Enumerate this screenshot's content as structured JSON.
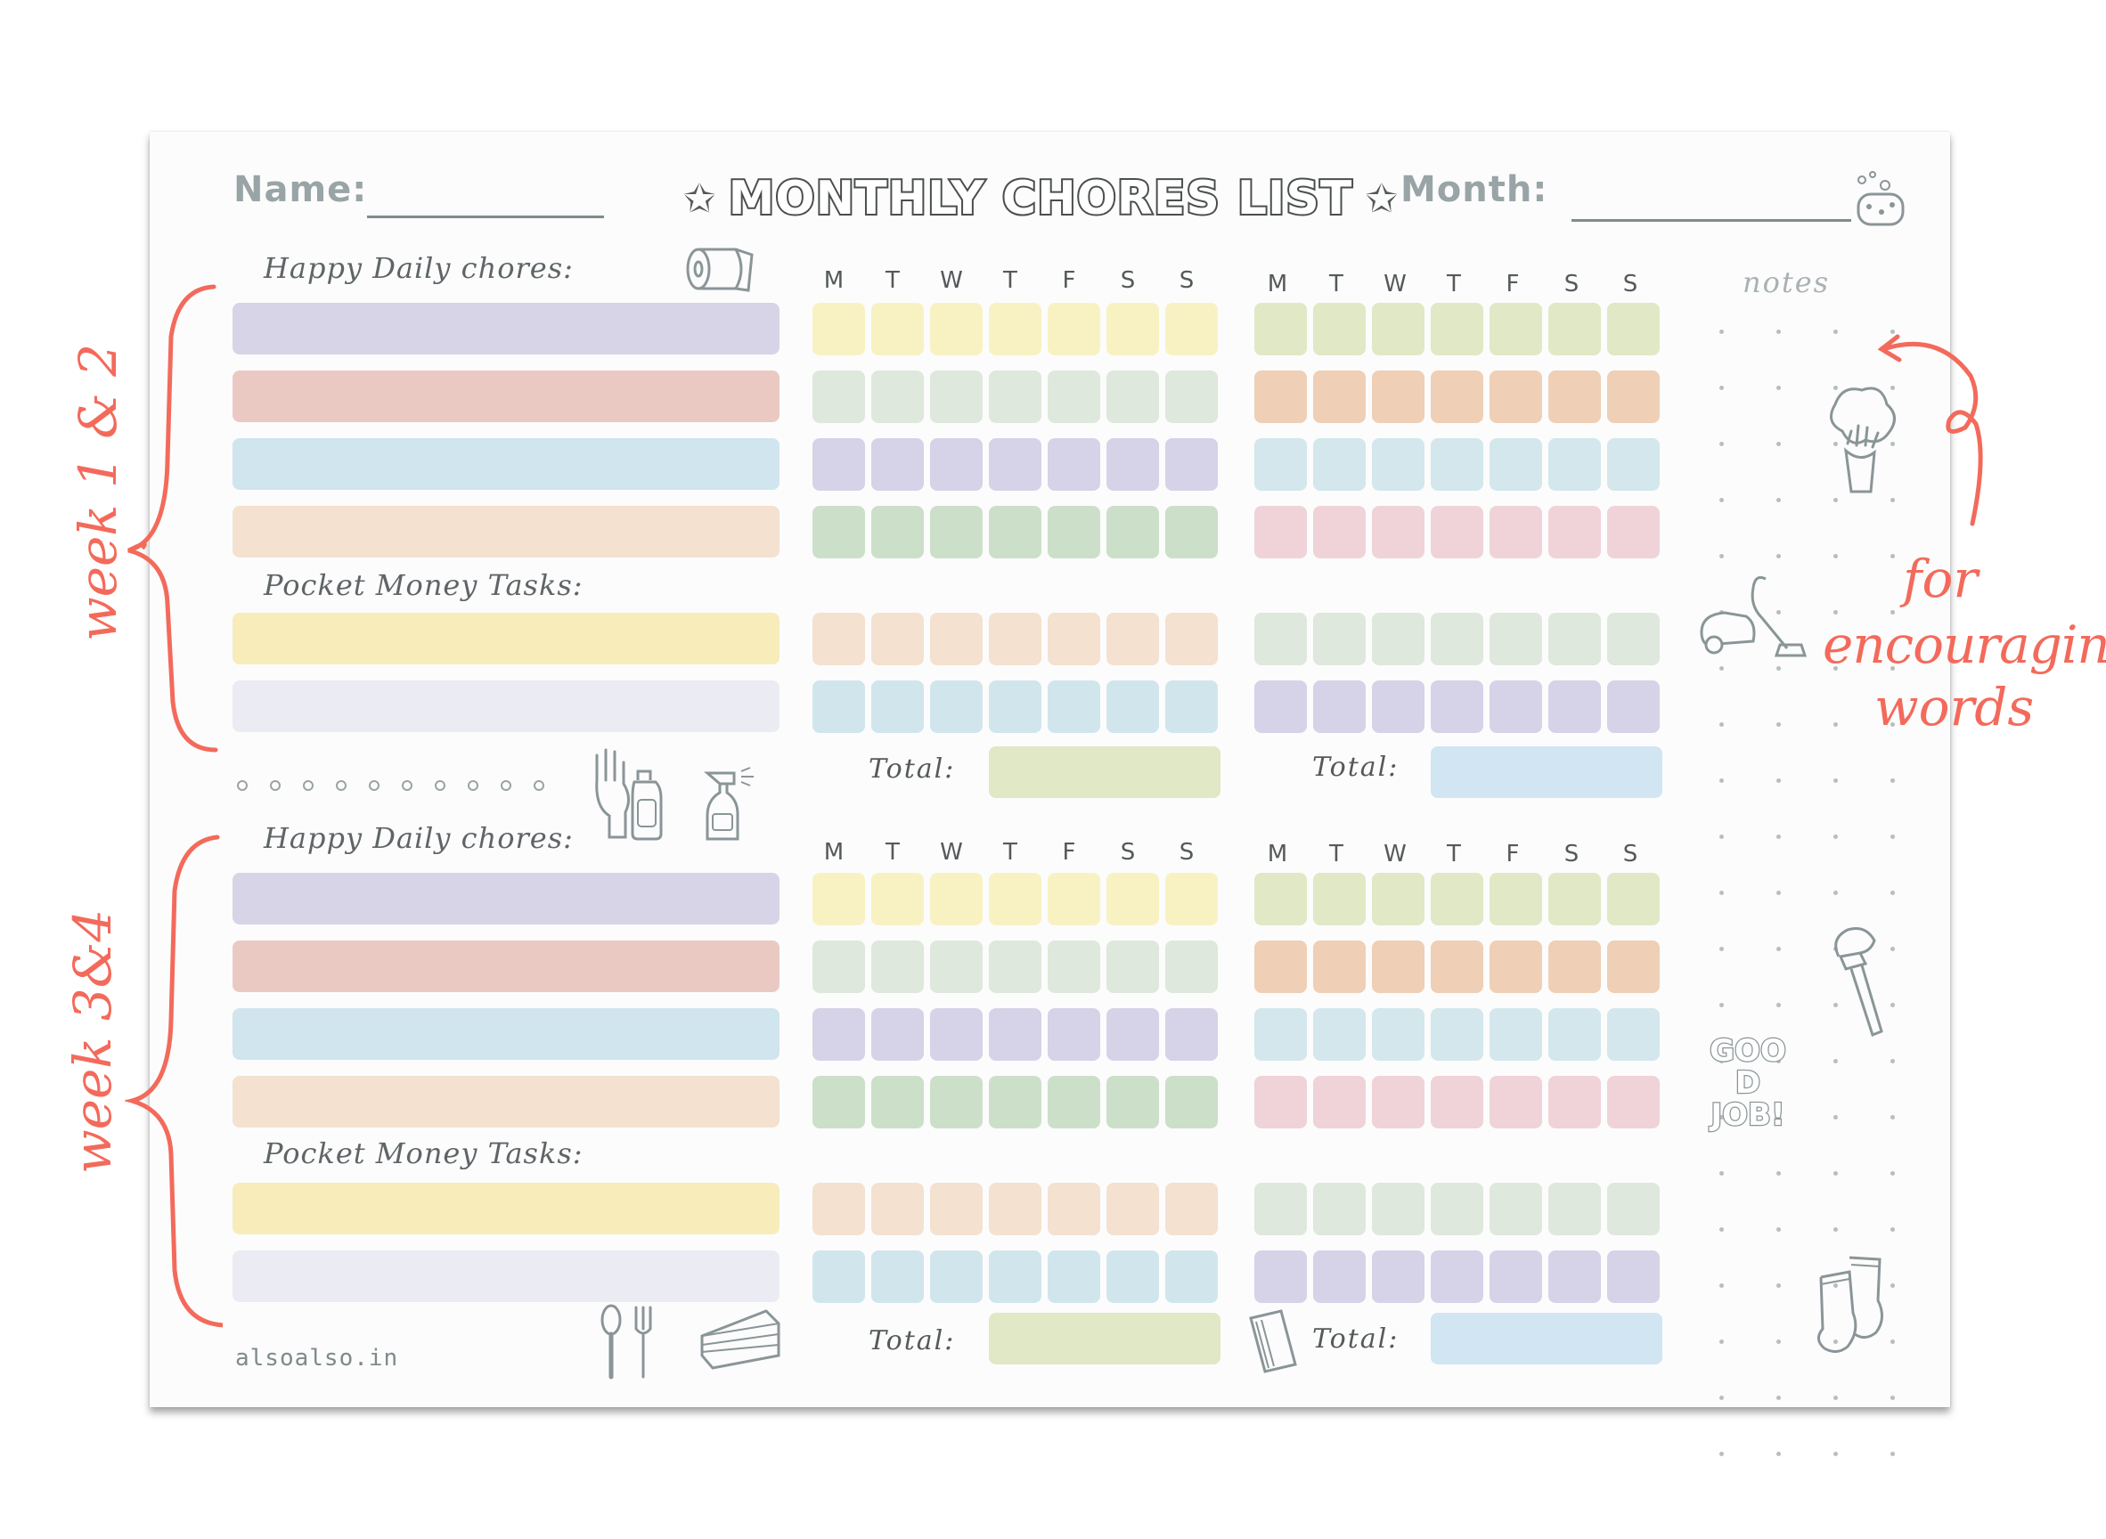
{
  "header": {
    "name_label": "Name:",
    "title": "MONTHLY CHORES LIST",
    "month_label": "Month:"
  },
  "sections": {
    "daily_label": "Happy Daily chores:",
    "pocket_label": "Pocket Money Tasks:",
    "total_label": "Total:"
  },
  "days": [
    "M",
    "T",
    "W",
    "T",
    "F",
    "S",
    "S"
  ],
  "notes_label": "notes",
  "footer": "alsoalso.in",
  "good_job": "GOOD JOB!",
  "annotations": {
    "week_1_2": "week 1 & 2",
    "week_3_4": "week 3&4",
    "encouraging": [
      "for",
      "encouraging",
      "words"
    ]
  },
  "colors": {
    "annotation": "#f36a5b",
    "bars": [
      "#d6d4e6",
      "#ebc9c3",
      "#d0e5ee",
      "#f4e1cf",
      "#f7ecba",
      "#ebebf4"
    ],
    "left_grid": [
      "#f8f2c3",
      "#dee8dc",
      "#d6d2e7",
      "#cce0c9",
      "#f4e1cf",
      "#d1e5ec"
    ],
    "right_grid": [
      "#e0e8c5",
      "#efcfb5",
      "#d3e7ec",
      "#efd3d9",
      "#dee8dc",
      "#d6d2e7"
    ],
    "total_left": "#e0e8c5",
    "total_right": "#d1e5f2"
  }
}
